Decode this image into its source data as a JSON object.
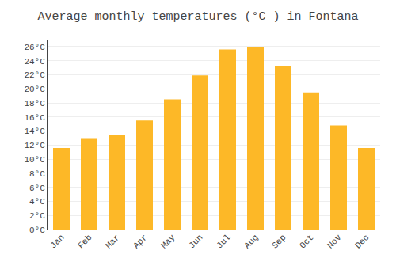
{
  "chart_data": {
    "type": "bar",
    "title": "Average monthly temperatures (°C ) in Fontana",
    "categories": [
      "Jan",
      "Feb",
      "Mar",
      "Apr",
      "May",
      "Jun",
      "Jul",
      "Aug",
      "Sep",
      "Oct",
      "Nov",
      "Dec"
    ],
    "values": [
      11.6,
      13.0,
      13.4,
      15.5,
      18.5,
      21.9,
      25.6,
      25.9,
      23.3,
      19.5,
      14.8,
      11.6
    ],
    "color": "#FDB827",
    "ylim": [
      0,
      27
    ],
    "yticks": [
      {
        "value": 0,
        "label": "0°C"
      },
      {
        "value": 2,
        "label": "2°C"
      },
      {
        "value": 4,
        "label": "4°C"
      },
      {
        "value": 6,
        "label": "6°C"
      },
      {
        "value": 8,
        "label": "8°C"
      },
      {
        "value": 10,
        "label": "10°C"
      },
      {
        "value": 12,
        "label": "12°C"
      },
      {
        "value": 14,
        "label": "14°C"
      },
      {
        "value": 16,
        "label": "16°C"
      },
      {
        "value": 18,
        "label": "18°C"
      },
      {
        "value": 20,
        "label": "20°C"
      },
      {
        "value": 22,
        "label": "22°C"
      },
      {
        "value": 24,
        "label": "24°C"
      },
      {
        "value": 26,
        "label": "26°C"
      }
    ],
    "grid": true
  }
}
